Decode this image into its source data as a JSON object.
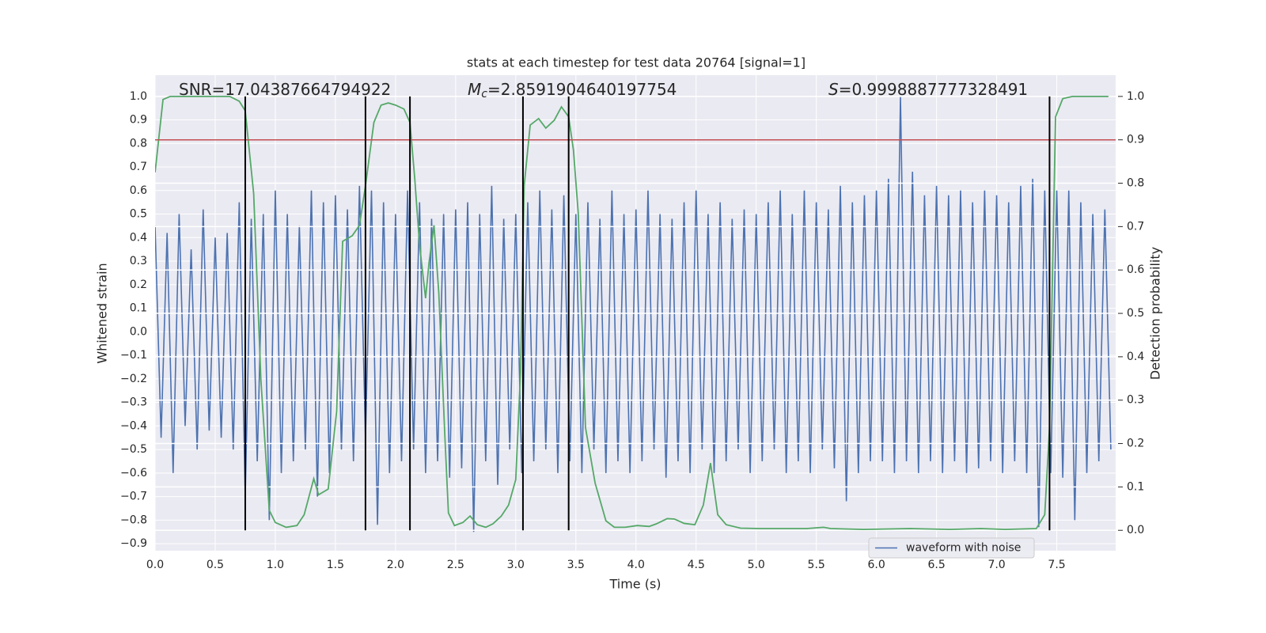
{
  "chart_data": {
    "type": "line",
    "title": "stats at each timestep for test data 20764 [signal=1]",
    "xlabel": "Time (s)",
    "ylabel": "Whitened strain",
    "y2label": "Detection probability",
    "xlim": [
      0,
      7.99
    ],
    "ylim": [
      -0.93,
      1.09
    ],
    "y2lim": [
      -0.047,
      1.049
    ],
    "grid": true,
    "legend": "lower right",
    "xticks": [
      {
        "value": 0,
        "label": "0.0"
      },
      {
        "value": 0.5,
        "label": "0.5"
      },
      {
        "value": 1,
        "label": "1.0"
      },
      {
        "value": 1.5,
        "label": "1.5"
      },
      {
        "value": 2,
        "label": "2.0"
      },
      {
        "value": 2.5,
        "label": "2.5"
      },
      {
        "value": 3,
        "label": "3.0"
      },
      {
        "value": 3.5,
        "label": "3.5"
      },
      {
        "value": 4,
        "label": "4.0"
      },
      {
        "value": 4.5,
        "label": "4.5"
      },
      {
        "value": 5,
        "label": "5.0"
      },
      {
        "value": 5.5,
        "label": "5.5"
      },
      {
        "value": 6,
        "label": "6.0"
      },
      {
        "value": 6.5,
        "label": "6.5"
      },
      {
        "value": 7,
        "label": "7.0"
      },
      {
        "value": 7.5,
        "label": "7.5"
      }
    ],
    "yticks": [
      {
        "value": -0.9,
        "label": "−0.9"
      },
      {
        "value": -0.8,
        "label": "−0.8"
      },
      {
        "value": -0.7,
        "label": "−0.7"
      },
      {
        "value": -0.6,
        "label": "−0.6"
      },
      {
        "value": -0.5,
        "label": "−0.5"
      },
      {
        "value": -0.4,
        "label": "−0.4"
      },
      {
        "value": -0.3,
        "label": "−0.3"
      },
      {
        "value": -0.2,
        "label": "−0.2"
      },
      {
        "value": -0.1,
        "label": "−0.1"
      },
      {
        "value": 0,
        "label": "0.0"
      },
      {
        "value": 0.1,
        "label": "0.1"
      },
      {
        "value": 0.2,
        "label": "0.2"
      },
      {
        "value": 0.3,
        "label": "0.3"
      },
      {
        "value": 0.4,
        "label": "0.4"
      },
      {
        "value": 0.5,
        "label": "0.5"
      },
      {
        "value": 0.6,
        "label": "0.6"
      },
      {
        "value": 0.7,
        "label": "0.7"
      },
      {
        "value": 0.8,
        "label": "0.8"
      },
      {
        "value": 0.9,
        "label": "0.9"
      },
      {
        "value": 1,
        "label": "1.0"
      }
    ],
    "y2ticks": [
      {
        "value": 0,
        "label": "0.0"
      },
      {
        "value": 0.1,
        "label": "0.1"
      },
      {
        "value": 0.2,
        "label": "0.2"
      },
      {
        "value": 0.3,
        "label": "0.3"
      },
      {
        "value": 0.4,
        "label": "0.4"
      },
      {
        "value": 0.5,
        "label": "0.5"
      },
      {
        "value": 0.6,
        "label": "0.6"
      },
      {
        "value": 0.7,
        "label": "0.7"
      },
      {
        "value": 0.8,
        "label": "0.8"
      },
      {
        "value": 0.9,
        "label": "0.9"
      },
      {
        "value": 1,
        "label": "1.0"
      }
    ],
    "series": [
      {
        "name": "waveform with noise",
        "color": "#4c72b0",
        "x": [
          0,
          0.05,
          0.1,
          0.15,
          0.2,
          0.25,
          0.3,
          0.35,
          0.4,
          0.45,
          0.5,
          0.55,
          0.6,
          0.65,
          0.7,
          0.75,
          0.8,
          0.85,
          0.9,
          0.95,
          1,
          1.05,
          1.1,
          1.15,
          1.2,
          1.25,
          1.3,
          1.35,
          1.4,
          1.45,
          1.5,
          1.55,
          1.6,
          1.65,
          1.7,
          1.75,
          1.8,
          1.85,
          1.9,
          1.95,
          2,
          2.05,
          2.1,
          2.15,
          2.2,
          2.25,
          2.3,
          2.35,
          2.4,
          2.45,
          2.5,
          2.55,
          2.6,
          2.65,
          2.7,
          2.75,
          2.8,
          2.85,
          2.9,
          2.95,
          3,
          3.05,
          3.1,
          3.15,
          3.2,
          3.25,
          3.3,
          3.35,
          3.4,
          3.45,
          3.5,
          3.55,
          3.6,
          3.65,
          3.7,
          3.75,
          3.8,
          3.85,
          3.9,
          3.95,
          4,
          4.05,
          4.1,
          4.15,
          4.2,
          4.25,
          4.3,
          4.35,
          4.4,
          4.45,
          4.5,
          4.55,
          4.6,
          4.65,
          4.7,
          4.75,
          4.8,
          4.85,
          4.9,
          4.95,
          5,
          5.05,
          5.1,
          5.15,
          5.2,
          5.25,
          5.3,
          5.35,
          5.4,
          5.45,
          5.5,
          5.55,
          5.6,
          5.65,
          5.7,
          5.75,
          5.8,
          5.85,
          5.9,
          5.95,
          6,
          6.05,
          6.1,
          6.15,
          6.2,
          6.25,
          6.3,
          6.35,
          6.4,
          6.45,
          6.5,
          6.55,
          6.6,
          6.65,
          6.7,
          6.75,
          6.8,
          6.85,
          6.9,
          6.95,
          7,
          7.05,
          7.1,
          7.15,
          7.2,
          7.25,
          7.3,
          7.35,
          7.4,
          7.45,
          7.5,
          7.55,
          7.6,
          7.65,
          7.7,
          7.75,
          7.8,
          7.85,
          7.9,
          7.95
        ],
        "values": [
          0.45,
          -0.45,
          0.42,
          -0.6,
          0.5,
          -0.4,
          0.35,
          -0.5,
          0.52,
          -0.42,
          0.4,
          -0.45,
          0.42,
          -0.5,
          0.55,
          -0.7,
          0.48,
          -0.55,
          0.5,
          -0.8,
          0.6,
          -0.6,
          0.5,
          -0.55,
          0.45,
          -0.5,
          0.6,
          -0.7,
          0.55,
          -0.6,
          0.58,
          -0.5,
          0.52,
          -0.55,
          0.62,
          -0.45,
          0.6,
          -0.82,
          0.55,
          -0.6,
          0.5,
          -0.55,
          0.6,
          -0.5,
          0.55,
          -0.6,
          0.48,
          -0.55,
          0.5,
          -0.62,
          0.52,
          -0.58,
          0.55,
          -0.85,
          0.5,
          -0.55,
          0.62,
          -0.65,
          0.48,
          -0.5,
          0.5,
          -0.6,
          0.55,
          -0.55,
          0.6,
          -0.5,
          0.52,
          -0.6,
          0.58,
          -0.55,
          0.5,
          -0.6,
          0.55,
          -0.5,
          0.48,
          -0.6,
          0.6,
          -0.55,
          0.5,
          -0.6,
          0.52,
          -0.55,
          0.6,
          -0.5,
          0.5,
          -0.62,
          0.48,
          -0.55,
          0.55,
          -0.6,
          0.6,
          -0.5,
          0.5,
          -0.6,
          0.55,
          -0.55,
          0.48,
          -0.5,
          0.52,
          -0.6,
          0.5,
          -0.55,
          0.55,
          -0.5,
          0.6,
          -0.6,
          0.5,
          -0.55,
          0.6,
          -0.6,
          0.55,
          -0.5,
          0.52,
          -0.58,
          0.62,
          -0.72,
          0.55,
          -0.6,
          0.58,
          -0.55,
          0.6,
          -0.55,
          0.65,
          -0.6,
          1.0,
          -0.55,
          0.68,
          -0.6,
          0.58,
          -0.55,
          0.62,
          -0.6,
          0.58,
          -0.55,
          0.6,
          -0.6,
          0.55,
          -0.58,
          0.6,
          -0.55,
          0.58,
          -0.6,
          0.55,
          -0.55,
          0.62,
          -0.6,
          0.65,
          -0.83,
          0.6,
          -0.6,
          0.6,
          -0.62,
          0.6,
          -0.8,
          0.55,
          -0.6,
          0.5,
          -0.55,
          0.52,
          -0.5
        ]
      },
      {
        "color": "#55a868",
        "axis": "y2",
        "x": [
          0,
          0.066,
          0.125,
          0.62,
          0.65,
          0.7,
          0.75,
          0.82,
          0.88,
          0.95,
          1.0,
          1.09,
          1.18,
          1.24,
          1.32,
          1.36,
          1.44,
          1.51,
          1.56,
          1.64,
          1.7,
          1.75,
          1.82,
          1.88,
          1.94,
          2.0,
          2.07,
          2.12,
          2.16,
          2.2,
          2.25,
          2.28,
          2.32,
          2.36,
          2.41,
          2.44,
          2.49,
          2.56,
          2.62,
          2.68,
          2.75,
          2.81,
          2.88,
          2.94,
          3.0,
          3.04,
          3.07,
          3.12,
          3.19,
          3.25,
          3.32,
          3.38,
          3.44,
          3.48,
          3.52,
          3.58,
          3.66,
          3.75,
          3.82,
          3.91,
          4.01,
          4.11,
          4.17,
          4.26,
          4.32,
          4.4,
          4.49,
          4.56,
          4.62,
          4.68,
          4.75,
          4.87,
          5.03,
          5.29,
          5.42,
          5.56,
          5.62,
          5.89,
          6.28,
          6.61,
          6.87,
          7.07,
          7.33,
          7.4,
          7.44,
          7.49,
          7.55,
          7.63,
          7.93
        ],
        "values": [
          0.825,
          0.993,
          1.0,
          1.0,
          0.996,
          0.989,
          0.967,
          0.776,
          0.347,
          0.046,
          0.018,
          0.007,
          0.011,
          0.036,
          0.119,
          0.082,
          0.095,
          0.274,
          0.666,
          0.679,
          0.703,
          0.794,
          0.94,
          0.98,
          0.985,
          0.98,
          0.971,
          0.94,
          0.81,
          0.657,
          0.535,
          0.62,
          0.703,
          0.547,
          0.219,
          0.04,
          0.011,
          0.018,
          0.033,
          0.013,
          0.007,
          0.015,
          0.033,
          0.058,
          0.117,
          0.365,
          0.794,
          0.934,
          0.949,
          0.927,
          0.945,
          0.976,
          0.953,
          0.876,
          0.73,
          0.237,
          0.109,
          0.022,
          0.007,
          0.007,
          0.011,
          0.009,
          0.015,
          0.027,
          0.026,
          0.016,
          0.013,
          0.058,
          0.155,
          0.036,
          0.013,
          0.005,
          0.004,
          0.004,
          0.004,
          0.007,
          0.004,
          0.002,
          0.004,
          0.002,
          0.004,
          0.002,
          0.004,
          0.036,
          0.237,
          0.953,
          0.995,
          1.0,
          1.0
        ]
      }
    ],
    "threshold": {
      "value": 0.9,
      "axis": "y2",
      "color": "#c44e52"
    },
    "vlines": {
      "x": [
        0.75,
        1.75,
        2.12,
        3.06,
        3.44,
        7.44
      ],
      "ymin": 0,
      "ymax": 1,
      "axis": "y2",
      "color": "#000000"
    },
    "annotations": [
      {
        "text": "SNR=17.04387664794922"
      },
      {
        "symbol": "M",
        "sub": "c",
        "text": "=2.8591904640197754"
      },
      {
        "symbol": "S",
        "text": "=0.9998887777328491"
      }
    ]
  }
}
